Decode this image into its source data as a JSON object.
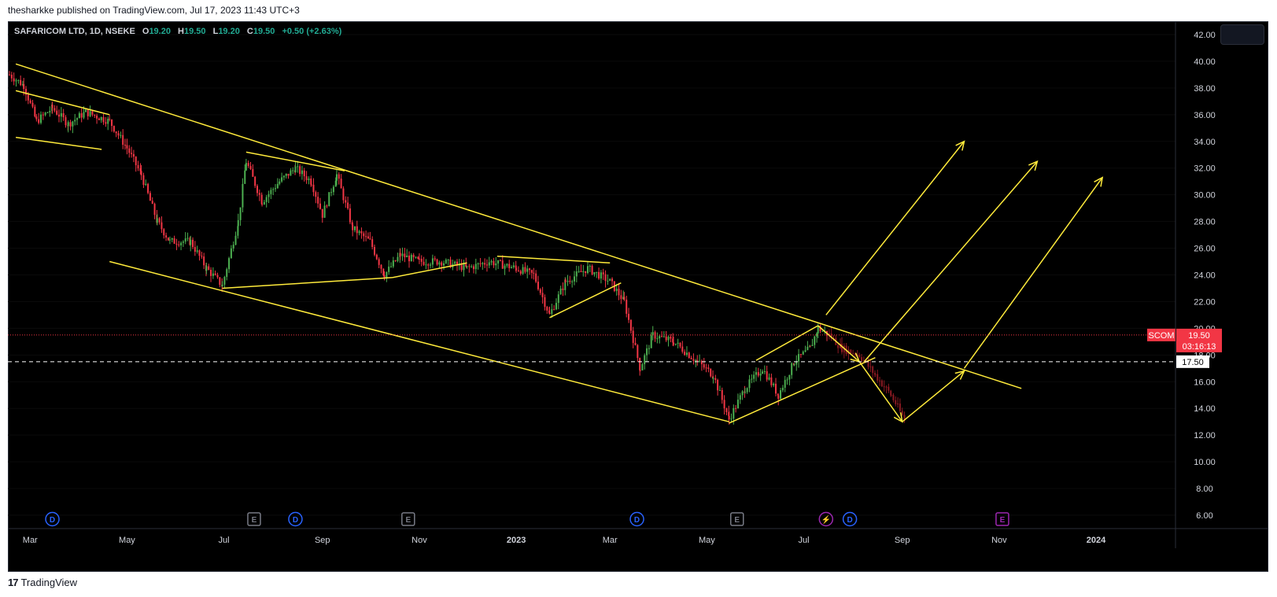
{
  "header": {
    "published": "thesharkke published on TradingView.com, Jul 17, 2023 11:43 UTC+3"
  },
  "legend": {
    "symbol": "SAFARICOM LTD, 1D, NSEKE",
    "o_label": "O",
    "o": "19.20",
    "h_label": "H",
    "h": "19.50",
    "l_label": "L",
    "l": "19.20",
    "c_label": "C",
    "c": "19.50",
    "change": "+0.50 (+2.63%)"
  },
  "footer": {
    "logo_icon": "tradingview-logo-icon",
    "brand": "TradingView"
  },
  "colors": {
    "up": "#4caf50",
    "down": "#f23645",
    "lines": "#ffeb3b",
    "price_tag": "#f23645",
    "event_blue": "#2962ff",
    "event_purple": "#9c27b0"
  },
  "chart_data": {
    "type": "candlestick",
    "title": "SAFARICOM LTD, 1D, NSEKE",
    "symbol_tag": "SCOM",
    "last_price": "19.50",
    "countdown": "03:16:13",
    "level_label": "17.50",
    "ylim": [
      5,
      43
    ],
    "y_ticks": [
      "6.00",
      "8.00",
      "10.00",
      "12.00",
      "14.00",
      "16.00",
      "18.00",
      "20.00",
      "22.00",
      "24.00",
      "26.00",
      "28.00",
      "30.00",
      "32.00",
      "34.00",
      "36.00",
      "38.00",
      "40.00",
      "42.00"
    ],
    "x_ticks": [
      "Mar",
      "May",
      "Jul",
      "Sep",
      "Nov",
      "2023",
      "Mar",
      "May",
      "Jul",
      "Sep",
      "Nov",
      "2024"
    ],
    "x_range": [
      "2022-02-15",
      "2024-02-20"
    ],
    "price_path": [
      [
        "2022-02-16",
        39.0
      ],
      [
        "2022-02-25",
        38.2
      ],
      [
        "2022-03-05",
        35.5
      ],
      [
        "2022-03-15",
        36.5
      ],
      [
        "2022-03-25",
        35.3
      ],
      [
        "2022-04-05",
        36.2
      ],
      [
        "2022-04-20",
        35.5
      ],
      [
        "2022-05-01",
        33.5
      ],
      [
        "2022-05-10",
        31.5
      ],
      [
        "2022-05-20",
        28.0
      ],
      [
        "2022-05-28",
        26.5
      ],
      [
        "2022-06-10",
        26.5
      ],
      [
        "2022-06-20",
        24.5
      ],
      [
        "2022-06-30",
        23.2
      ],
      [
        "2022-07-10",
        28.0
      ],
      [
        "2022-07-15",
        32.5
      ],
      [
        "2022-07-25",
        29.5
      ],
      [
        "2022-08-05",
        31.0
      ],
      [
        "2022-08-15",
        32.0
      ],
      [
        "2022-08-25",
        31.0
      ],
      [
        "2022-09-01",
        28.5
      ],
      [
        "2022-09-10",
        31.5
      ],
      [
        "2022-09-20",
        27.5
      ],
      [
        "2022-10-01",
        26.5
      ],
      [
        "2022-10-10",
        24.0
      ],
      [
        "2022-10-20",
        25.5
      ],
      [
        "2022-11-01",
        25.0
      ],
      [
        "2022-11-15",
        25.0
      ],
      [
        "2022-12-01",
        24.5
      ],
      [
        "2022-12-15",
        25.0
      ],
      [
        "2023-01-01",
        24.5
      ],
      [
        "2023-01-12",
        24.0
      ],
      [
        "2023-01-22",
        21.0
      ],
      [
        "2023-02-01",
        23.5
      ],
      [
        "2023-02-15",
        24.5
      ],
      [
        "2023-03-01",
        23.5
      ],
      [
        "2023-03-10",
        22.0
      ],
      [
        "2023-03-20",
        17.0
      ],
      [
        "2023-03-28",
        19.5
      ],
      [
        "2023-04-10",
        19.0
      ],
      [
        "2023-04-25",
        17.5
      ],
      [
        "2023-05-05",
        16.5
      ],
      [
        "2023-05-15",
        13.2
      ],
      [
        "2023-05-25",
        15.5
      ],
      [
        "2023-06-05",
        17.0
      ],
      [
        "2023-06-15",
        15.0
      ],
      [
        "2023-06-25",
        17.5
      ],
      [
        "2023-07-05",
        18.5
      ],
      [
        "2023-07-10",
        20.0
      ],
      [
        "2023-07-17",
        19.5
      ]
    ],
    "projection_path": [
      [
        "2023-07-17",
        19.5
      ],
      [
        "2023-07-25",
        18.5
      ],
      [
        "2023-08-05",
        18.0
      ],
      [
        "2023-08-15",
        16.5
      ],
      [
        "2023-08-25",
        15.0
      ],
      [
        "2023-09-03",
        13.0
      ]
    ],
    "trendlines": [
      {
        "name": "main-descending-resistance",
        "from": [
          "2022-02-20",
          39.8
        ],
        "to": [
          "2023-11-15",
          15.5
        ]
      },
      {
        "name": "main-descending-support",
        "from": [
          "2022-04-20",
          25.0
        ],
        "to": [
          "2023-05-15",
          13.0
        ]
      },
      {
        "name": "flag-top",
        "from": [
          "2022-02-20",
          37.8
        ],
        "to": [
          "2022-04-20",
          36.0
        ]
      },
      {
        "name": "flag-bottom",
        "from": [
          "2022-02-20",
          34.3
        ],
        "to": [
          "2022-04-15",
          33.4
        ]
      },
      {
        "name": "pennant-top",
        "from": [
          "2022-07-15",
          33.2
        ],
        "to": [
          "2022-09-15",
          31.8
        ]
      },
      {
        "name": "pennant-bottom",
        "from": [
          "2022-06-30",
          23.0
        ],
        "to": [
          "2022-10-15",
          23.8
        ]
      },
      {
        "name": "pennant-bottom-2",
        "from": [
          "2022-10-15",
          23.8
        ],
        "to": [
          "2022-12-01",
          24.9
        ]
      },
      {
        "name": "wedge-top",
        "from": [
          "2022-12-20",
          25.4
        ],
        "to": [
          "2023-03-01",
          24.9
        ]
      },
      {
        "name": "wedge-bottom",
        "from": [
          "2023-01-22",
          20.8
        ],
        "to": [
          "2023-03-08",
          23.4
        ]
      },
      {
        "name": "rising-channel-top",
        "from": [
          "2023-06-01",
          17.6
        ],
        "to": [
          "2023-07-10",
          20.2
        ]
      },
      {
        "name": "rising-channel-bottom",
        "from": [
          "2023-05-15",
          12.9
        ],
        "to": [
          "2023-08-15",
          17.8
        ]
      }
    ],
    "arrows": [
      {
        "from": [
          "2023-07-10",
          20.2
        ],
        "to": [
          "2023-08-05",
          17.5
        ]
      },
      {
        "from": [
          "2023-08-05",
          17.5
        ],
        "to": [
          "2023-09-01",
          13.0
        ]
      },
      {
        "from": [
          "2023-09-01",
          13.0
        ],
        "to": [
          "2023-10-10",
          16.8
        ]
      },
      {
        "from": [
          "2023-07-15",
          21.0
        ],
        "to": [
          "2023-10-10",
          34.0
        ]
      },
      {
        "from": [
          "2023-08-08",
          17.5
        ],
        "to": [
          "2023-11-25",
          32.5
        ]
      },
      {
        "from": [
          "2023-10-10",
          17.0
        ],
        "to": [
          "2024-01-05",
          31.3
        ]
      }
    ],
    "events": [
      {
        "label": "D",
        "date": "2022-03-15",
        "color": "#2962ff"
      },
      {
        "label": "E",
        "date": "2022-07-20",
        "color": "#787b86"
      },
      {
        "label": "D",
        "date": "2022-08-15",
        "color": "#2962ff"
      },
      {
        "label": "E",
        "date": "2022-10-25",
        "color": "#787b86"
      },
      {
        "label": "D",
        "date": "2023-03-18",
        "color": "#2962ff"
      },
      {
        "label": "E",
        "date": "2023-05-20",
        "color": "#787b86"
      },
      {
        "label": "⚡",
        "date": "2023-07-15",
        "color": "#9c27b0"
      },
      {
        "label": "D",
        "date": "2023-07-30",
        "color": "#2962ff"
      },
      {
        "label": "E",
        "date": "2023-11-03",
        "color": "#9c27b0"
      }
    ]
  }
}
